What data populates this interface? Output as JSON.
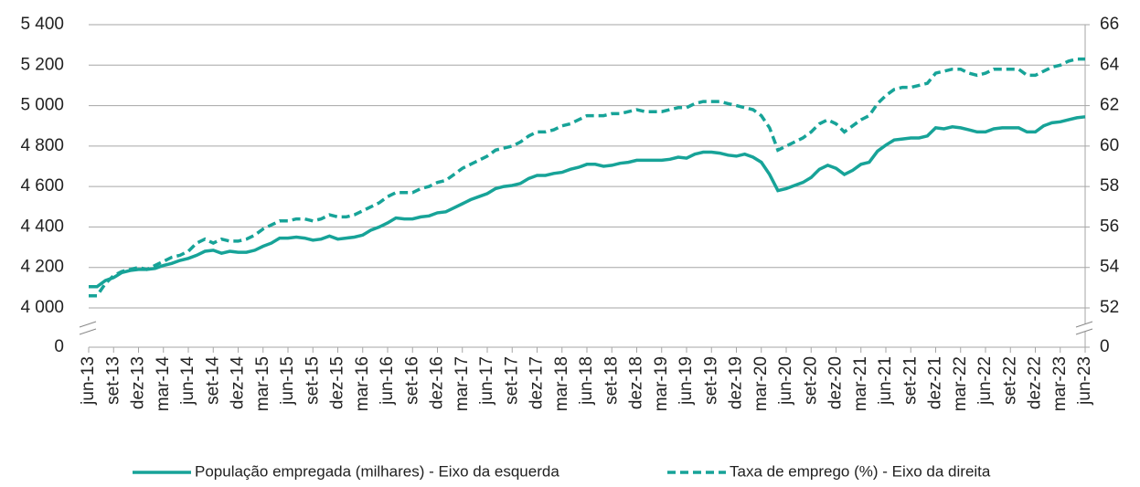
{
  "chart_data": {
    "type": "line",
    "axis_break": true,
    "categories": [
      "jun-13",
      null,
      null,
      "set-13",
      null,
      null,
      "dez-13",
      null,
      null,
      "mar-14",
      null,
      null,
      "jun-14",
      null,
      null,
      "set-14",
      null,
      null,
      "dez-14",
      null,
      null,
      "mar-15",
      null,
      null,
      "jun-15",
      null,
      null,
      "set-15",
      null,
      null,
      "dez-15",
      null,
      null,
      "mar-16",
      null,
      null,
      "jun-16",
      null,
      null,
      "set-16",
      null,
      null,
      "dez-16",
      null,
      null,
      "mar-17",
      null,
      null,
      "jun-17",
      null,
      null,
      "set-17",
      null,
      null,
      "dez-17",
      null,
      null,
      "mar-18",
      null,
      null,
      "jun-18",
      null,
      null,
      "set-18",
      null,
      null,
      "dez-18",
      null,
      null,
      "mar-19",
      null,
      null,
      "jun-19",
      null,
      null,
      "set-19",
      null,
      null,
      "dez-19",
      null,
      null,
      "mar-20",
      null,
      null,
      "jun-20",
      null,
      null,
      "set-20",
      null,
      null,
      "dez-20",
      null,
      null,
      "mar-21",
      null,
      null,
      "jun-21",
      null,
      null,
      "set-21",
      null,
      null,
      "dez-21",
      null,
      null,
      "mar-22",
      null,
      null,
      "jun-22",
      null,
      null,
      "set-22",
      null,
      null,
      "dez-22",
      null,
      null,
      "mar-23",
      null,
      null,
      "jun-23"
    ],
    "series": [
      {
        "name": "População empregada (milhares) - Eixo da esquerda",
        "color": "#17a398",
        "dash": false,
        "axis": "y",
        "values": [
          4105,
          4105,
          4135,
          4150,
          4175,
          4185,
          4190,
          4190,
          4195,
          4210,
          4220,
          4235,
          4245,
          4260,
          4280,
          4285,
          4270,
          4280,
          4275,
          4275,
          4285,
          4305,
          4320,
          4345,
          4345,
          4350,
          4345,
          4335,
          4340,
          4355,
          4340,
          4345,
          4350,
          4360,
          4385,
          4400,
          4420,
          4445,
          4440,
          4440,
          4450,
          4455,
          4470,
          4475,
          4495,
          4515,
          4535,
          4550,
          4565,
          4590,
          4600,
          4605,
          4615,
          4640,
          4655,
          4655,
          4665,
          4670,
          4685,
          4695,
          4710,
          4710,
          4700,
          4705,
          4715,
          4720,
          4730,
          4730,
          4730,
          4730,
          4735,
          4745,
          4740,
          4760,
          4770,
          4770,
          4765,
          4755,
          4750,
          4760,
          4745,
          4720,
          4660,
          4580,
          4590,
          4605,
          4620,
          4645,
          4685,
          4705,
          4690,
          4660,
          4680,
          4710,
          4720,
          4775,
          4805,
          4830,
          4835,
          4840,
          4840,
          4850,
          4890,
          4885,
          4895,
          4890,
          4880,
          4870,
          4870,
          4885,
          4890,
          4890,
          4890,
          4870,
          4870,
          4900,
          4915,
          4920,
          4930,
          4940,
          4945
        ]
      },
      {
        "name": "Taxa de emprego (%) - Eixo da direita",
        "color": "#17a398",
        "dash": true,
        "axis": "y2",
        "values": [
          52.6,
          52.6,
          53.2,
          53.6,
          53.8,
          53.9,
          54.0,
          53.9,
          54.1,
          54.3,
          54.5,
          54.6,
          54.8,
          55.2,
          55.4,
          55.2,
          55.4,
          55.3,
          55.3,
          55.4,
          55.6,
          55.9,
          56.1,
          56.3,
          56.3,
          56.4,
          56.4,
          56.3,
          56.4,
          56.6,
          56.5,
          56.5,
          56.6,
          56.8,
          57.0,
          57.2,
          57.5,
          57.7,
          57.7,
          57.7,
          57.9,
          58.0,
          58.2,
          58.3,
          58.6,
          58.9,
          59.1,
          59.3,
          59.5,
          59.8,
          59.9,
          60.0,
          60.2,
          60.5,
          60.7,
          60.7,
          60.8,
          61.0,
          61.1,
          61.3,
          61.5,
          61.5,
          61.5,
          61.6,
          61.6,
          61.7,
          61.8,
          61.7,
          61.7,
          61.7,
          61.8,
          61.9,
          61.9,
          62.1,
          62.2,
          62.2,
          62.2,
          62.1,
          62.0,
          61.9,
          61.8,
          61.5,
          60.9,
          59.8,
          60.0,
          60.2,
          60.4,
          60.7,
          61.1,
          61.3,
          61.1,
          60.7,
          61.0,
          61.3,
          61.5,
          62.1,
          62.5,
          62.8,
          62.9,
          62.9,
          63.0,
          63.1,
          63.6,
          63.7,
          63.8,
          63.8,
          63.6,
          63.5,
          63.6,
          63.8,
          63.8,
          63.8,
          63.8,
          63.5,
          63.5,
          63.7,
          63.9,
          64.0,
          64.2,
          64.3,
          64.3
        ]
      }
    ],
    "ylim": [
      0,
      5400
    ],
    "yticks": [
      0,
      {
        "value": 4000,
        "label": "4 000"
      },
      {
        "value": 4200,
        "label": "4 200"
      },
      {
        "value": 4400,
        "label": "4 400"
      },
      {
        "value": 4600,
        "label": "4 600"
      },
      {
        "value": 4800,
        "label": "4 800"
      },
      {
        "value": 5000,
        "label": "5 000"
      },
      {
        "value": 5200,
        "label": "5 200"
      },
      {
        "value": 5400,
        "label": "5 400"
      }
    ],
    "y2lim": [
      0,
      66
    ],
    "y2ticks": [
      0,
      52,
      54,
      56,
      58,
      60,
      62,
      64,
      66
    ],
    "grid": true,
    "legend": "bottom"
  }
}
